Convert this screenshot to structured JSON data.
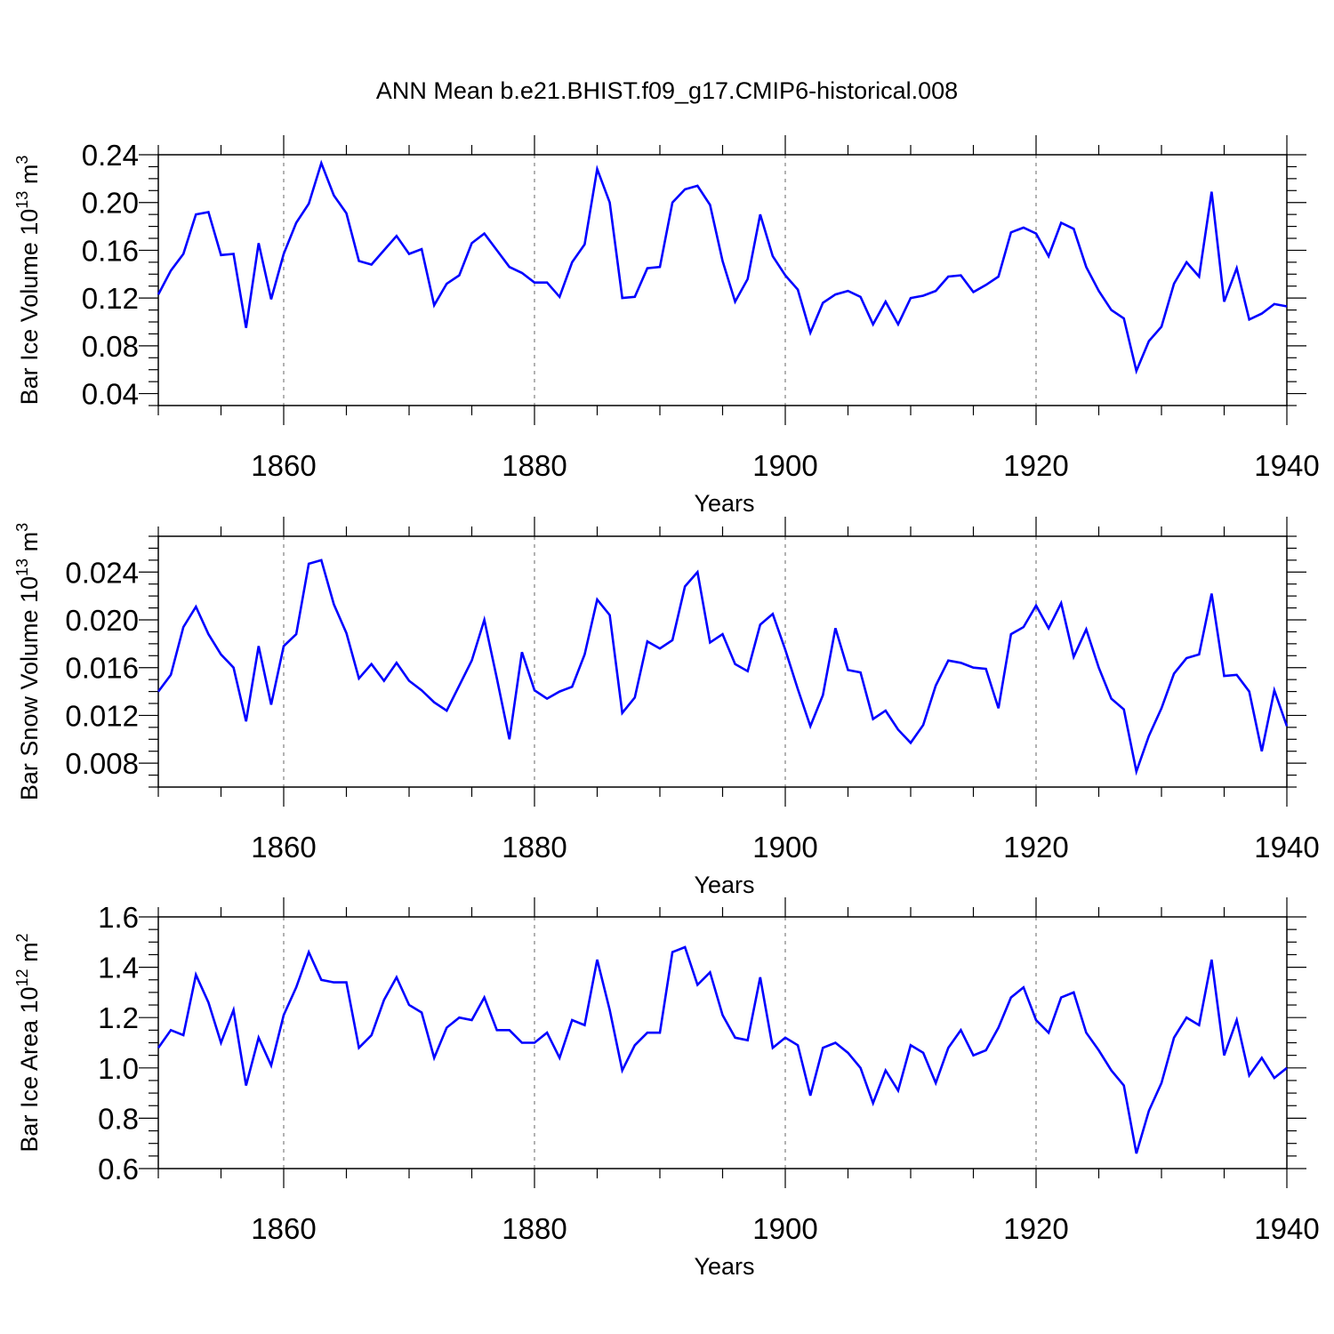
{
  "title": "ANN Mean b.e21.BHIST.f09_g17.CMIP6-historical.008",
  "colors": {
    "series": "#0000ff",
    "axes": "#000000",
    "grid": "#808080"
  },
  "chart_data": [
    {
      "type": "line",
      "title": "ANN Mean b.e21.BHIST.f09_g17.CMIP6-historical.008",
      "xlabel": "Years",
      "ylabel": {
        "text": "Bar Ice Volume 10",
        "sup": "13",
        "unit": " m",
        "unit_sup": "3"
      },
      "xlim": [
        1850,
        1940
      ],
      "ylim": [
        0.03,
        0.24
      ],
      "xticks": [
        1860,
        1880,
        1900,
        1920,
        1940
      ],
      "xtick_labels": [
        "1860",
        "1880",
        "1900",
        "1920",
        "1940"
      ],
      "yticks": [
        0.04,
        0.08,
        0.12,
        0.16,
        0.2,
        0.24
      ],
      "ytick_labels": [
        "0.04",
        "0.08",
        "0.12",
        "0.16",
        "0.20",
        "0.24"
      ],
      "grid": "vertical dashed at major x ticks",
      "x": [
        1850,
        1851,
        1852,
        1853,
        1854,
        1855,
        1856,
        1857,
        1858,
        1859,
        1860,
        1861,
        1862,
        1863,
        1864,
        1865,
        1866,
        1867,
        1868,
        1869,
        1870,
        1871,
        1872,
        1873,
        1874,
        1875,
        1876,
        1877,
        1878,
        1879,
        1880,
        1881,
        1882,
        1883,
        1884,
        1885,
        1886,
        1887,
        1888,
        1889,
        1890,
        1891,
        1892,
        1893,
        1894,
        1895,
        1896,
        1897,
        1898,
        1899,
        1900,
        1901,
        1902,
        1903,
        1904,
        1905,
        1906,
        1907,
        1908,
        1909,
        1910,
        1911,
        1912,
        1913,
        1914,
        1915,
        1916,
        1917,
        1918,
        1919,
        1920,
        1921,
        1922,
        1923,
        1924,
        1925,
        1926,
        1927,
        1928,
        1929,
        1930,
        1931,
        1932,
        1933,
        1934,
        1935,
        1936,
        1937,
        1938,
        1939,
        1940
      ],
      "values": [
        0.123,
        0.143,
        0.157,
        0.19,
        0.192,
        0.156,
        0.157,
        0.095,
        0.166,
        0.119,
        0.157,
        0.183,
        0.199,
        0.233,
        0.206,
        0.191,
        0.151,
        0.148,
        0.16,
        0.172,
        0.157,
        0.161,
        0.114,
        0.132,
        0.139,
        0.166,
        0.174,
        0.16,
        0.146,
        0.141,
        0.133,
        0.133,
        0.121,
        0.15,
        0.165,
        0.228,
        0.2,
        0.12,
        0.121,
        0.145,
        0.146,
        0.2,
        0.211,
        0.214,
        0.198,
        0.151,
        0.117,
        0.136,
        0.19,
        0.155,
        0.139,
        0.127,
        0.091,
        0.116,
        0.123,
        0.126,
        0.121,
        0.098,
        0.117,
        0.098,
        0.12,
        0.122,
        0.126,
        0.138,
        0.139,
        0.125,
        0.131,
        0.138,
        0.175,
        0.179,
        0.174,
        0.155,
        0.183,
        0.178,
        0.146,
        0.126,
        0.11,
        0.103,
        0.059,
        0.084,
        0.096,
        0.132,
        0.15,
        0.138,
        0.209,
        0.117,
        0.145,
        0.102,
        0.107,
        0.115,
        0.113
      ]
    },
    {
      "type": "line",
      "xlabel": "Years",
      "ylabel": {
        "text": "Bar Snow Volume 10",
        "sup": "13",
        "unit": " m",
        "unit_sup": "3"
      },
      "xlim": [
        1850,
        1940
      ],
      "ylim": [
        0.006,
        0.027
      ],
      "xticks": [
        1860,
        1880,
        1900,
        1920,
        1940
      ],
      "xtick_labels": [
        "1860",
        "1880",
        "1900",
        "1920",
        "1940"
      ],
      "yticks": [
        0.008,
        0.012,
        0.016,
        0.02,
        0.024
      ],
      "ytick_labels": [
        "0.008",
        "0.012",
        "0.016",
        "0.020",
        "0.024"
      ],
      "grid": "vertical dashed at major x ticks",
      "x": [
        1850,
        1851,
        1852,
        1853,
        1854,
        1855,
        1856,
        1857,
        1858,
        1859,
        1860,
        1861,
        1862,
        1863,
        1864,
        1865,
        1866,
        1867,
        1868,
        1869,
        1870,
        1871,
        1872,
        1873,
        1874,
        1875,
        1876,
        1877,
        1878,
        1879,
        1880,
        1881,
        1882,
        1883,
        1884,
        1885,
        1886,
        1887,
        1888,
        1889,
        1890,
        1891,
        1892,
        1893,
        1894,
        1895,
        1896,
        1897,
        1898,
        1899,
        1900,
        1901,
        1902,
        1903,
        1904,
        1905,
        1906,
        1907,
        1908,
        1909,
        1910,
        1911,
        1912,
        1913,
        1914,
        1915,
        1916,
        1917,
        1918,
        1919,
        1920,
        1921,
        1922,
        1923,
        1924,
        1925,
        1926,
        1927,
        1928,
        1929,
        1930,
        1931,
        1932,
        1933,
        1934,
        1935,
        1936,
        1937,
        1938,
        1939,
        1940
      ],
      "values": [
        0.014,
        0.0154,
        0.0194,
        0.0211,
        0.0188,
        0.0171,
        0.016,
        0.0115,
        0.0178,
        0.0129,
        0.0178,
        0.0188,
        0.0247,
        0.025,
        0.0213,
        0.0189,
        0.0151,
        0.0163,
        0.0149,
        0.0164,
        0.0149,
        0.0141,
        0.0131,
        0.0124,
        0.0145,
        0.0166,
        0.02,
        0.0151,
        0.01,
        0.0173,
        0.0141,
        0.0134,
        0.014,
        0.0144,
        0.0171,
        0.0217,
        0.0204,
        0.0122,
        0.0135,
        0.0182,
        0.0176,
        0.0183,
        0.0228,
        0.024,
        0.0181,
        0.0188,
        0.0163,
        0.0157,
        0.0196,
        0.0205,
        0.0175,
        0.0142,
        0.0111,
        0.0137,
        0.0193,
        0.0158,
        0.0156,
        0.0117,
        0.0124,
        0.0108,
        0.0097,
        0.0112,
        0.0145,
        0.0166,
        0.0164,
        0.016,
        0.0159,
        0.0126,
        0.0188,
        0.0194,
        0.0212,
        0.0193,
        0.0214,
        0.0169,
        0.0192,
        0.016,
        0.0134,
        0.0125,
        0.0073,
        0.0103,
        0.0126,
        0.0155,
        0.0168,
        0.0171,
        0.0222,
        0.0153,
        0.0154,
        0.014,
        0.009,
        0.0141,
        0.0111
      ]
    },
    {
      "type": "line",
      "xlabel": "Years",
      "ylabel": {
        "text": "Bar Ice Area 10",
        "sup": "12",
        "unit": " m",
        "unit_sup": "2"
      },
      "xlim": [
        1850,
        1940
      ],
      "ylim": [
        0.6,
        1.6
      ],
      "xticks": [
        1860,
        1880,
        1900,
        1920,
        1940
      ],
      "xtick_labels": [
        "1860",
        "1880",
        "1900",
        "1920",
        "1940"
      ],
      "yticks": [
        0.6,
        0.8,
        1.0,
        1.2,
        1.4,
        1.6
      ],
      "ytick_labels": [
        "0.6",
        "0.8",
        "1.0",
        "1.2",
        "1.4",
        "1.6"
      ],
      "grid": "vertical dashed at major x ticks",
      "x": [
        1850,
        1851,
        1852,
        1853,
        1854,
        1855,
        1856,
        1857,
        1858,
        1859,
        1860,
        1861,
        1862,
        1863,
        1864,
        1865,
        1866,
        1867,
        1868,
        1869,
        1870,
        1871,
        1872,
        1873,
        1874,
        1875,
        1876,
        1877,
        1878,
        1879,
        1880,
        1881,
        1882,
        1883,
        1884,
        1885,
        1886,
        1887,
        1888,
        1889,
        1890,
        1891,
        1892,
        1893,
        1894,
        1895,
        1896,
        1897,
        1898,
        1899,
        1900,
        1901,
        1902,
        1903,
        1904,
        1905,
        1906,
        1907,
        1908,
        1909,
        1910,
        1911,
        1912,
        1913,
        1914,
        1915,
        1916,
        1917,
        1918,
        1919,
        1920,
        1921,
        1922,
        1923,
        1924,
        1925,
        1926,
        1927,
        1928,
        1929,
        1930,
        1931,
        1932,
        1933,
        1934,
        1935,
        1936,
        1937,
        1938,
        1939,
        1940
      ],
      "values": [
        1.08,
        1.15,
        1.13,
        1.37,
        1.26,
        1.1,
        1.23,
        0.93,
        1.12,
        1.01,
        1.21,
        1.32,
        1.46,
        1.35,
        1.34,
        1.34,
        1.08,
        1.13,
        1.27,
        1.36,
        1.25,
        1.22,
        1.04,
        1.16,
        1.2,
        1.19,
        1.28,
        1.15,
        1.15,
        1.1,
        1.1,
        1.14,
        1.04,
        1.19,
        1.17,
        1.43,
        1.23,
        0.99,
        1.09,
        1.14,
        1.14,
        1.46,
        1.48,
        1.33,
        1.38,
        1.21,
        1.12,
        1.11,
        1.36,
        1.08,
        1.12,
        1.09,
        0.89,
        1.08,
        1.1,
        1.06,
        1.0,
        0.86,
        0.99,
        0.91,
        1.09,
        1.06,
        0.94,
        1.08,
        1.15,
        1.05,
        1.07,
        1.16,
        1.28,
        1.32,
        1.19,
        1.14,
        1.28,
        1.3,
        1.14,
        1.07,
        0.99,
        0.93,
        0.66,
        0.83,
        0.94,
        1.12,
        1.2,
        1.17,
        1.43,
        1.05,
        1.19,
        0.97,
        1.04,
        0.96,
        1.0
      ]
    }
  ]
}
